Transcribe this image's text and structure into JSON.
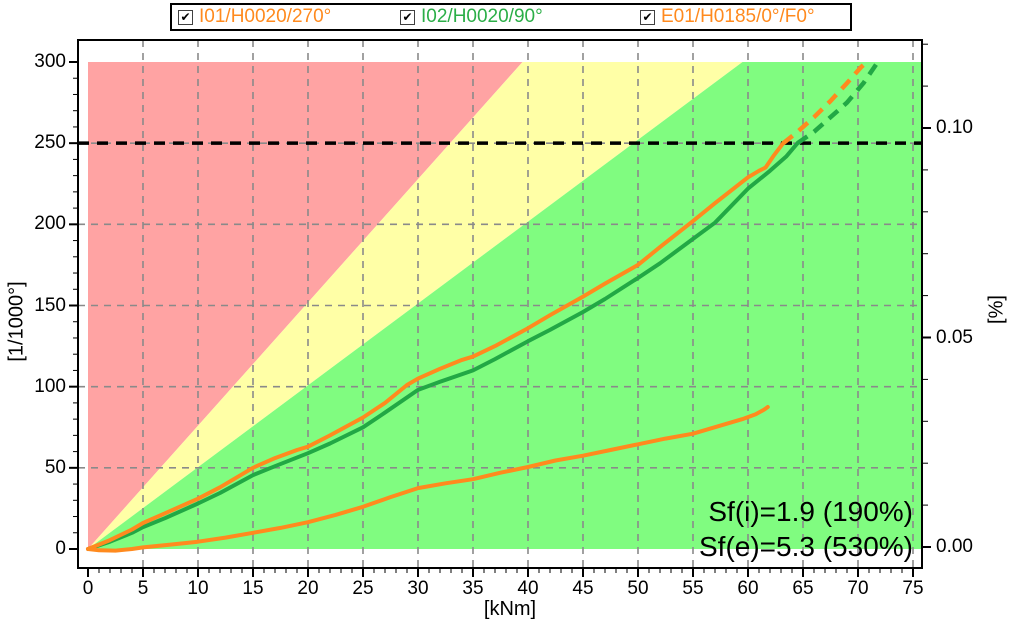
{
  "legend": {
    "items": [
      {
        "label": "I01/H0020/270°",
        "color": "#ff8a1e",
        "checked": true,
        "checkmark": "✔"
      },
      {
        "label": "I02/H0020/90°",
        "color": "#2bae47",
        "checked": true,
        "checkmark": "✔"
      },
      {
        "label": "E01/H0185/0°/F0°",
        "color": "#ff8a1e",
        "checked": true,
        "checkmark": "✔"
      }
    ]
  },
  "annotations": {
    "sf_i": "Sf(i)=1.9 (190%)",
    "sf_e": "Sf(e)=5.3 (530%)"
  },
  "colors": {
    "zone_red": "#ffa3a3",
    "zone_yellow": "#ffffa6",
    "zone_green": "#80fc80",
    "grid": "#8a8a8a",
    "axis": "#000000",
    "curve_orange": "#ff8a1e",
    "curve_green": "#22a845",
    "limit_line": "#000000"
  },
  "chart_data": {
    "type": "line",
    "xlabel": "[kNm]",
    "ylabel_left": "[1/1000°]",
    "ylabel_right": "[%]",
    "x_range": [
      0,
      75
    ],
    "x_major_step": 5,
    "x_minor_step": 1,
    "x_tick_labels": [
      "0",
      "5",
      "10",
      "15",
      "20",
      "25",
      "30",
      "35",
      "40",
      "45",
      "50",
      "55",
      "60",
      "65",
      "70",
      "75"
    ],
    "y_left_range": [
      0,
      300
    ],
    "y_left_major_step": 50,
    "y_left_minor_step": 10,
    "y_left_tick_labels": [
      "0",
      "50",
      "100",
      "150",
      "200",
      "250",
      "300"
    ],
    "y_right_tick_values": [
      0.0,
      0.05,
      0.1
    ],
    "y_right_tick_labels": [
      "0.00",
      "0.05",
      "0.10"
    ],
    "y_right_minor_step": 0.01,
    "y_right_max": 0.12,
    "grid_x_values": [
      5,
      10,
      15,
      20,
      25,
      30,
      35,
      40,
      45,
      50,
      55,
      60,
      65,
      70,
      75
    ],
    "grid_y_values": [
      50,
      100,
      150,
      200,
      250
    ],
    "limit_line": {
      "y": 250,
      "style": "dashed"
    },
    "zones": [
      {
        "name": "red",
        "color": "#ffa3a3",
        "points": [
          [
            0,
            0
          ],
          [
            0,
            300
          ],
          [
            39.5,
            300
          ]
        ]
      },
      {
        "name": "yellow",
        "color": "#ffffa6",
        "points": [
          [
            0,
            0
          ],
          [
            39.5,
            300
          ],
          [
            59.5,
            300
          ]
        ]
      },
      {
        "name": "green",
        "color": "#80fc80",
        "points": [
          [
            0,
            0
          ],
          [
            59.5,
            300
          ],
          [
            75.8,
            300
          ],
          [
            75.8,
            0
          ]
        ]
      }
    ],
    "series": [
      {
        "name": "I02/H0020/90°",
        "color": "#22a845",
        "solid": [
          [
            0,
            0
          ],
          [
            2,
            4.5
          ],
          [
            4,
            10
          ],
          [
            5,
            13.5
          ],
          [
            7,
            19
          ],
          [
            10,
            28
          ],
          [
            12,
            34.5
          ],
          [
            15,
            45.5
          ],
          [
            17,
            51
          ],
          [
            20,
            59
          ],
          [
            22,
            65
          ],
          [
            25,
            75
          ],
          [
            27,
            84
          ],
          [
            30,
            98
          ],
          [
            32,
            103
          ],
          [
            35,
            110
          ],
          [
            37,
            117
          ],
          [
            40,
            128
          ],
          [
            42,
            135
          ],
          [
            45,
            146
          ],
          [
            47,
            154
          ],
          [
            50,
            167
          ],
          [
            52,
            176
          ],
          [
            55,
            191
          ],
          [
            57,
            201
          ],
          [
            60,
            222
          ],
          [
            62,
            233
          ],
          [
            63.5,
            242
          ],
          [
            64.5,
            250
          ]
        ],
        "dashed": [
          [
            64.5,
            250
          ],
          [
            66,
            257
          ],
          [
            67.5,
            266
          ],
          [
            69,
            275
          ],
          [
            70.5,
            287
          ],
          [
            71.7,
            299
          ]
        ]
      },
      {
        "name": "I01/H0020/270°",
        "color": "#ff8a1e",
        "solid": [
          [
            0,
            0
          ],
          [
            2,
            5.5
          ],
          [
            4,
            12
          ],
          [
            5,
            16
          ],
          [
            7,
            22
          ],
          [
            10,
            31
          ],
          [
            12,
            38
          ],
          [
            15,
            50
          ],
          [
            17,
            56
          ],
          [
            19,
            61
          ],
          [
            20,
            63
          ],
          [
            22,
            70
          ],
          [
            25,
            81
          ],
          [
            27,
            90
          ],
          [
            29,
            101
          ],
          [
            30,
            105
          ],
          [
            32,
            111
          ],
          [
            34,
            116.5
          ],
          [
            35,
            118.5
          ],
          [
            37,
            125
          ],
          [
            40,
            136
          ],
          [
            42,
            144
          ],
          [
            45,
            155.5
          ],
          [
            47,
            163.5
          ],
          [
            50,
            175
          ],
          [
            52,
            186
          ],
          [
            55,
            202
          ],
          [
            57,
            213
          ],
          [
            60,
            229
          ],
          [
            61,
            233
          ],
          [
            61.6,
            235
          ],
          [
            62.3,
            242
          ],
          [
            63.2,
            250
          ]
        ],
        "dashed": [
          [
            63.2,
            250
          ],
          [
            64.5,
            257
          ],
          [
            66,
            266
          ],
          [
            67.5,
            276
          ],
          [
            69,
            287
          ],
          [
            70.3,
            297
          ],
          [
            70.8,
            300
          ]
        ]
      },
      {
        "name": "E01/H0185/0°/F0°",
        "color": "#ff8a1e",
        "solid": [
          [
            0,
            0
          ],
          [
            1,
            -0.8
          ],
          [
            2.5,
            -1
          ],
          [
            4,
            0
          ],
          [
            5,
            1
          ],
          [
            7.5,
            2.7
          ],
          [
            10,
            4.5
          ],
          [
            12.5,
            7
          ],
          [
            15,
            10
          ],
          [
            17.5,
            13
          ],
          [
            20,
            16.5
          ],
          [
            22.5,
            21
          ],
          [
            25,
            26
          ],
          [
            27.5,
            32
          ],
          [
            30,
            37.5
          ],
          [
            32.5,
            40.5
          ],
          [
            35,
            43
          ],
          [
            37.5,
            47
          ],
          [
            40,
            50.5
          ],
          [
            42.5,
            54.5
          ],
          [
            45,
            57.5
          ],
          [
            47.5,
            61
          ],
          [
            50,
            64.5
          ],
          [
            52.5,
            68
          ],
          [
            55,
            71
          ],
          [
            57.5,
            76
          ],
          [
            59.5,
            80
          ],
          [
            60.7,
            83
          ],
          [
            61.5,
            86
          ],
          [
            61.8,
            87.5
          ]
        ],
        "dashed": []
      }
    ]
  }
}
